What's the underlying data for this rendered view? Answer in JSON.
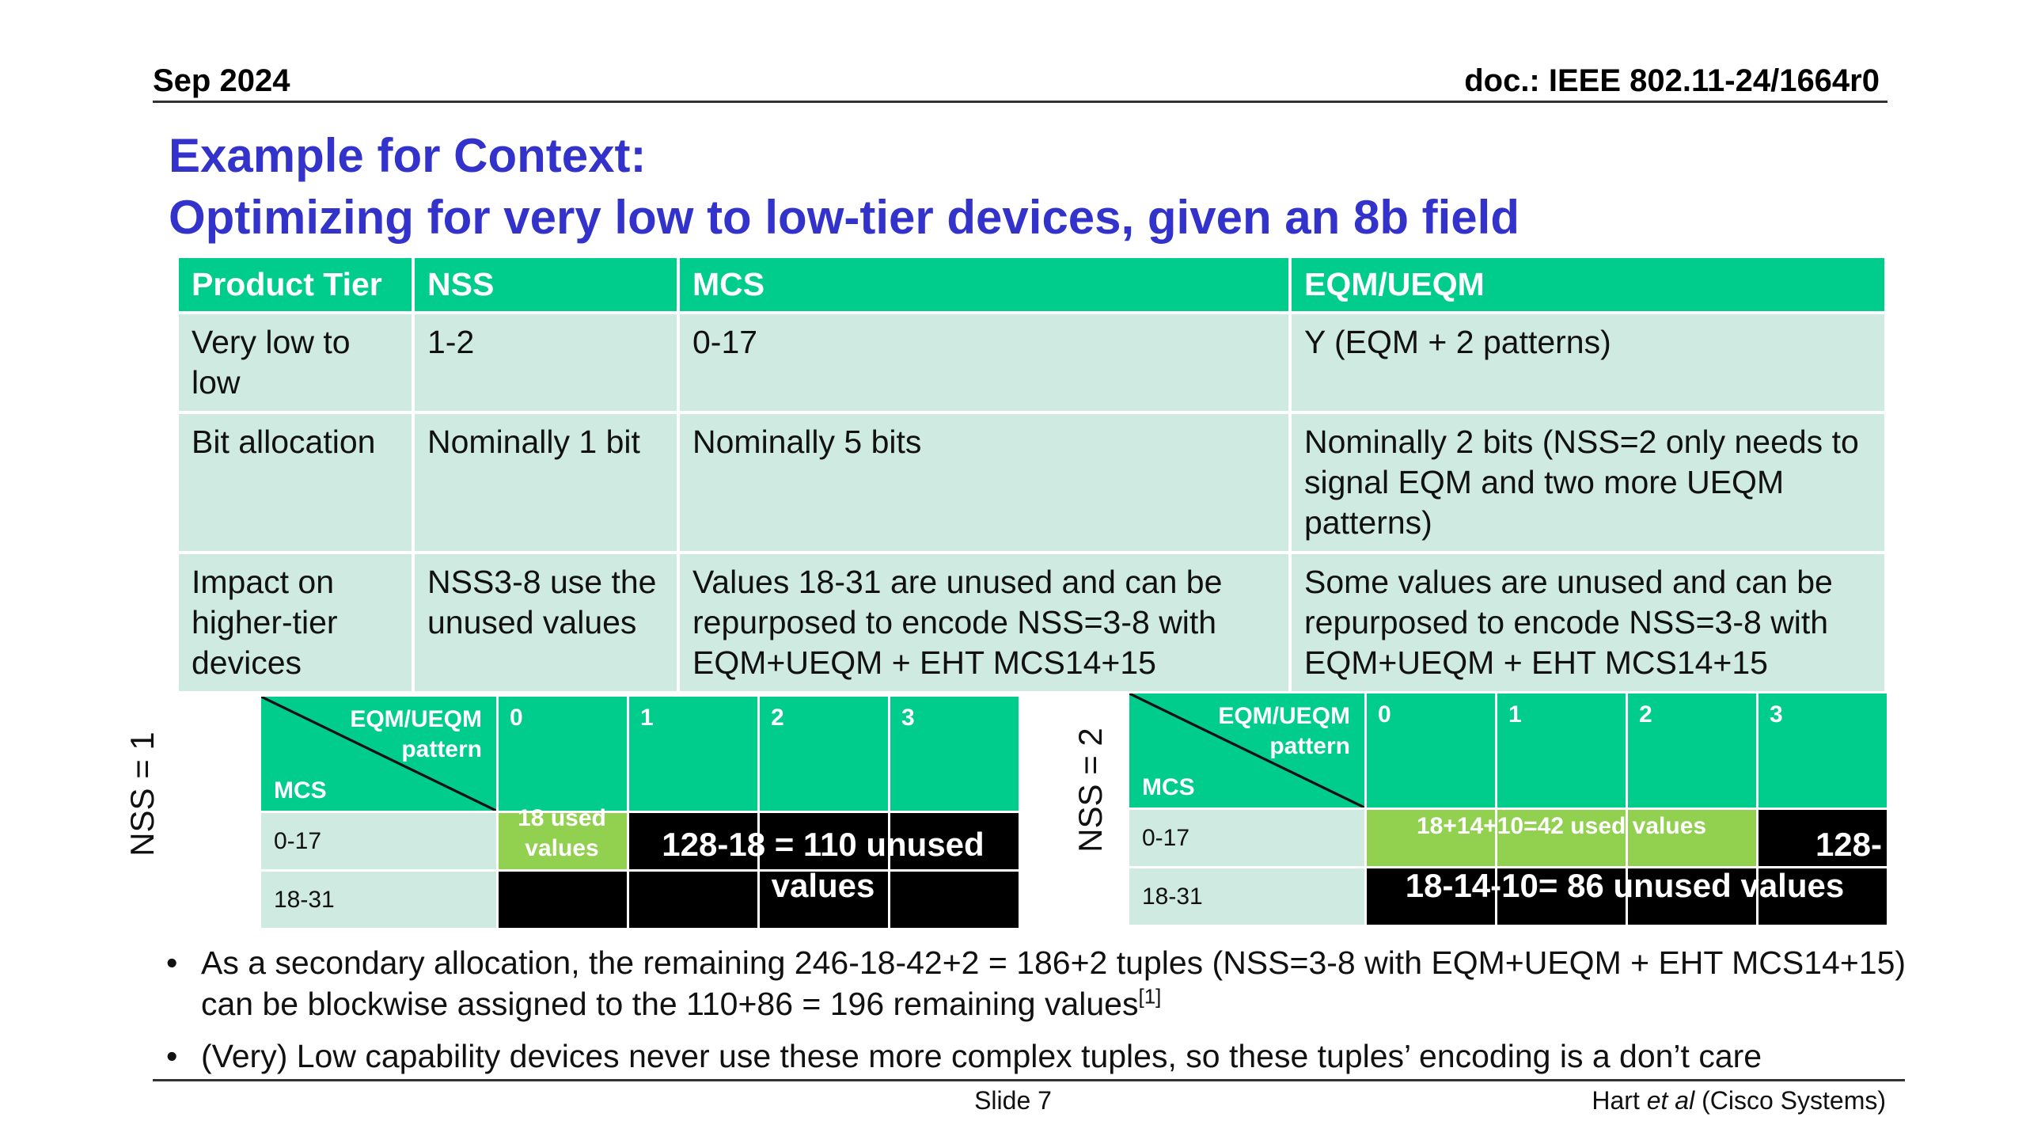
{
  "header": {
    "date": "Sep 2024",
    "doc": "doc.: IEEE 802.11-24/1664r0"
  },
  "title": {
    "line1": "Example for Context:",
    "line2": "Optimizing for very low to low-tier devices, given an 8b field"
  },
  "main_table": {
    "headers": [
      "Product Tier",
      "NSS",
      "MCS",
      "EQM/UEQM"
    ],
    "rows": [
      [
        "Very low to low",
        "1-2",
        "0-17",
        "Y (EQM + 2 patterns)"
      ],
      [
        "Bit allocation",
        "Nominally 1 bit",
        "Nominally 5 bits",
        "Nominally 2 bits (NSS=2 only needs to signal EQM and two more UEQM patterns)"
      ],
      [
        "Impact on higher-tier devices",
        "NSS3-8 use the unused values",
        "Values 18-31 are unused and can be repurposed to encode NSS=3-8 with EQM+UEQM + EHT MCS14+15",
        "Some values are unused and can be repurposed to encode NSS=3-8 with EQM+UEQM + EHT MCS14+15"
      ]
    ]
  },
  "mini_left": {
    "nss_label": "NSS = 1",
    "corner_top": "EQM/UEQM pattern",
    "corner_bottom": "MCS",
    "columns": [
      "0",
      "1",
      "2",
      "3"
    ],
    "rows": [
      "0-17",
      "18-31"
    ],
    "used_label": "18 used values",
    "unused_line1": "128-18 = 110 unused",
    "unused_line2": "values"
  },
  "mini_right": {
    "nss_label": "NSS = 2",
    "corner_top": "EQM/UEQM pattern",
    "corner_bottom": "MCS",
    "columns": [
      "0",
      "1",
      "2",
      "3"
    ],
    "rows": [
      "0-17",
      "18-31"
    ],
    "used_label": "18+14+10=42 used values",
    "partial_label": "128-",
    "unused_label": "18-14-10= 86 unused values"
  },
  "bullets": [
    {
      "text": "As a secondary allocation, the remaining 246-18-42+2 = 186+2 tuples (NSS=3-8 with EQM+UEQM  + EHT MCS14+15) can be blockwise assigned to the 110+86 = 196 remaining values",
      "sup": "[1]"
    },
    {
      "text": "(Very) Low capability devices never use these more complex tuples, so these tuples’ encoding is a don’t care",
      "sup": ""
    }
  ],
  "footer": {
    "slide": "Slide 7",
    "author_pre": "Hart ",
    "author_em": "et al",
    "author_post": " (Cisco Systems)"
  },
  "colors": {
    "title": "#3333cc",
    "header_green": "#00cc8b",
    "row_light": "#cfeae0",
    "used_green": "#92d050",
    "unused_black": "#000000"
  }
}
